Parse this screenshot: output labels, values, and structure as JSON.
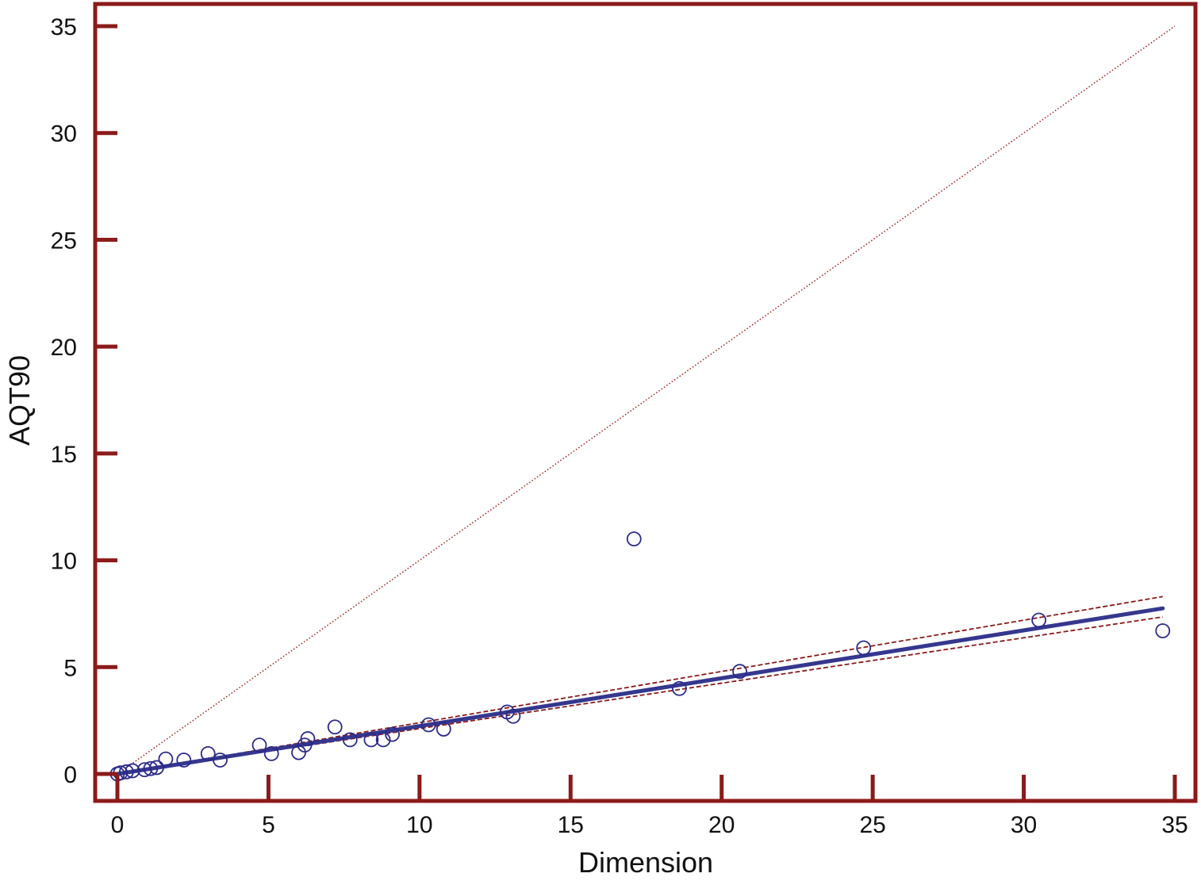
{
  "chart_data": {
    "type": "scatter",
    "title": "",
    "xlabel": "Dimension",
    "ylabel": "AQT90",
    "xlim": [
      -0.8,
      35.8
    ],
    "ylim": [
      -0.9,
      36.0
    ],
    "xticks": [
      "0",
      "5",
      "10",
      "15",
      "20",
      "25",
      "30",
      "35"
    ],
    "yticks": [
      "0",
      "5",
      "10",
      "15",
      "20",
      "25",
      "30",
      "35"
    ],
    "grid": false,
    "legend": "none",
    "points": [
      {
        "x": 0.0,
        "y": 0.0
      },
      {
        "x": 0.1,
        "y": 0.05
      },
      {
        "x": 0.3,
        "y": 0.1
      },
      {
        "x": 0.5,
        "y": 0.15
      },
      {
        "x": 0.9,
        "y": 0.2
      },
      {
        "x": 1.1,
        "y": 0.25
      },
      {
        "x": 1.3,
        "y": 0.3
      },
      {
        "x": 1.6,
        "y": 0.7
      },
      {
        "x": 2.2,
        "y": 0.65
      },
      {
        "x": 3.0,
        "y": 0.95
      },
      {
        "x": 3.4,
        "y": 0.65
      },
      {
        "x": 4.7,
        "y": 1.35
      },
      {
        "x": 5.1,
        "y": 0.95
      },
      {
        "x": 6.0,
        "y": 1.0
      },
      {
        "x": 6.2,
        "y": 1.35
      },
      {
        "x": 6.3,
        "y": 1.65
      },
      {
        "x": 7.2,
        "y": 2.2
      },
      {
        "x": 7.7,
        "y": 1.6
      },
      {
        "x": 8.4,
        "y": 1.6
      },
      {
        "x": 8.8,
        "y": 1.6
      },
      {
        "x": 9.1,
        "y": 1.85
      },
      {
        "x": 10.3,
        "y": 2.3
      },
      {
        "x": 10.8,
        "y": 2.1
      },
      {
        "x": 12.9,
        "y": 2.9
      },
      {
        "x": 13.1,
        "y": 2.7
      },
      {
        "x": 17.1,
        "y": 11.0
      },
      {
        "x": 18.6,
        "y": 4.0
      },
      {
        "x": 20.6,
        "y": 4.8
      },
      {
        "x": 24.7,
        "y": 5.9
      },
      {
        "x": 30.5,
        "y": 7.2
      },
      {
        "x": 34.6,
        "y": 6.7
      }
    ],
    "regression": {
      "x": [
        0,
        34.6
      ],
      "y": [
        0.0,
        7.75
      ]
    },
    "ci_upper": {
      "x": [
        0,
        34.6
      ],
      "y": [
        0.0,
        8.3
      ]
    },
    "ci_lower": {
      "x": [
        0,
        34.6
      ],
      "y": [
        0.0,
        7.35
      ]
    },
    "identity": {
      "x": [
        0,
        35
      ],
      "y": [
        0,
        35
      ]
    },
    "colors": {
      "axis": "#8b1a1a",
      "points": "#2b2a8a",
      "regression": "#35378e",
      "ci": "#8b1a1a",
      "identity": "#a01e1e"
    }
  }
}
